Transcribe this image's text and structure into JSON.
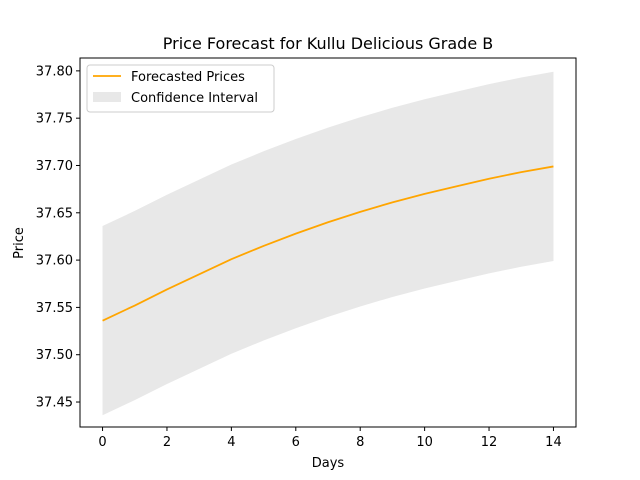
{
  "chart_data": {
    "type": "line",
    "title": "Price Forecast for Kullu Delicious Grade B",
    "xlabel": "Days",
    "ylabel": "Price",
    "xlim": [
      -0.7,
      14.7
    ],
    "ylim": [
      37.4236,
      37.8136
    ],
    "x_ticks": [
      0,
      2,
      4,
      6,
      8,
      10,
      12,
      14
    ],
    "x_tick_labels": [
      "0",
      "2",
      "4",
      "6",
      "8",
      "10",
      "12",
      "14"
    ],
    "y_ticks": [
      37.45,
      37.5,
      37.55,
      37.6,
      37.65,
      37.7,
      37.75,
      37.8
    ],
    "y_tick_labels": [
      "37.45",
      "37.50",
      "37.55",
      "37.60",
      "37.65",
      "37.70",
      "37.75",
      "37.80"
    ],
    "grid": false,
    "legend_position": "top-left",
    "series": [
      {
        "name": "Forecasted Prices",
        "color": "#ffa500",
        "x": [
          0,
          1,
          2,
          3,
          4,
          5,
          6,
          7,
          8,
          9,
          10,
          11,
          12,
          13,
          14
        ],
        "y": [
          37.536,
          37.552,
          37.569,
          37.585,
          37.601,
          37.615,
          37.628,
          37.64,
          37.651,
          37.661,
          37.67,
          37.678,
          37.686,
          37.693,
          37.699
        ]
      }
    ],
    "confidence_interval": {
      "name": "Confidence Interval",
      "color": "#e8e8e8",
      "x": [
        0,
        1,
        2,
        3,
        4,
        5,
        6,
        7,
        8,
        9,
        10,
        11,
        12,
        13,
        14
      ],
      "lower": [
        37.436,
        37.452,
        37.469,
        37.485,
        37.501,
        37.515,
        37.528,
        37.54,
        37.551,
        37.561,
        37.57,
        37.578,
        37.586,
        37.593,
        37.599
      ],
      "upper": [
        37.636,
        37.652,
        37.669,
        37.685,
        37.701,
        37.715,
        37.728,
        37.74,
        37.751,
        37.761,
        37.77,
        37.778,
        37.786,
        37.793,
        37.799
      ]
    }
  }
}
